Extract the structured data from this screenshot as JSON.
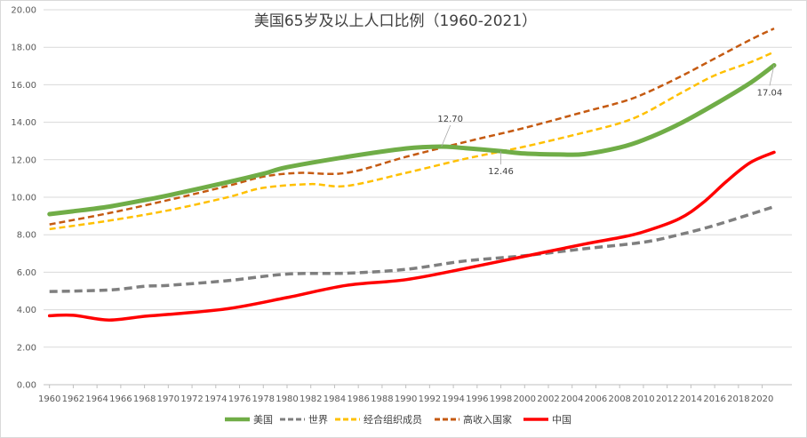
{
  "chart_data": {
    "type": "line",
    "title": "美国65岁及以上人口比例（1960-2021）",
    "xlabel": "",
    "ylabel": "",
    "ylim": [
      0,
      20
    ],
    "xlim": [
      1960,
      2021
    ],
    "grid": true,
    "legend_position": "bottom",
    "yticks": [
      "0.00",
      "2.00",
      "4.00",
      "6.00",
      "8.00",
      "10.00",
      "12.00",
      "14.00",
      "16.00",
      "18.00",
      "20.00"
    ],
    "xticks": [
      "1960",
      "1962",
      "1964",
      "1966",
      "1968",
      "1970",
      "1972",
      "1974",
      "1976",
      "1978",
      "1980",
      "1982",
      "1984",
      "1986",
      "1988",
      "1990",
      "1992",
      "1994",
      "1996",
      "1998",
      "2000",
      "2002",
      "2004",
      "2006",
      "2008",
      "2010",
      "2012",
      "2014",
      "2016",
      "2018",
      "2020"
    ],
    "series": [
      {
        "name": "美国",
        "color": "#70ad47",
        "style": "solid",
        "points": [
          [
            1960,
            9.1
          ],
          [
            1962,
            9.25
          ],
          [
            1965,
            9.5
          ],
          [
            1968,
            9.85
          ],
          [
            1970,
            10.1
          ],
          [
            1975,
            10.8
          ],
          [
            1978,
            11.25
          ],
          [
            1980,
            11.6
          ],
          [
            1985,
            12.15
          ],
          [
            1990,
            12.6
          ],
          [
            1993,
            12.7
          ],
          [
            1995,
            12.62
          ],
          [
            1998,
            12.46
          ],
          [
            2000,
            12.33
          ],
          [
            2003,
            12.28
          ],
          [
            2005,
            12.3
          ],
          [
            2008,
            12.65
          ],
          [
            2010,
            13.05
          ],
          [
            2013,
            13.9
          ],
          [
            2016,
            14.95
          ],
          [
            2019,
            16.1
          ],
          [
            2021,
            17.04
          ]
        ]
      },
      {
        "name": "世界",
        "color": "#7f7f7f",
        "style": "dashed",
        "points": [
          [
            1960,
            4.97
          ],
          [
            1965,
            5.05
          ],
          [
            1968,
            5.25
          ],
          [
            1970,
            5.3
          ],
          [
            1975,
            5.55
          ],
          [
            1980,
            5.9
          ],
          [
            1985,
            5.95
          ],
          [
            1990,
            6.15
          ],
          [
            1995,
            6.6
          ],
          [
            2000,
            6.88
          ],
          [
            2005,
            7.25
          ],
          [
            2010,
            7.6
          ],
          [
            2013,
            8.0
          ],
          [
            2016,
            8.5
          ],
          [
            2021,
            9.5
          ]
        ]
      },
      {
        "name": "经合组织成员",
        "color": "#ffc000",
        "style": "dashed",
        "points": [
          [
            1960,
            8.3
          ],
          [
            1965,
            8.75
          ],
          [
            1970,
            9.3
          ],
          [
            1975,
            10.0
          ],
          [
            1978,
            10.5
          ],
          [
            1982,
            10.7
          ],
          [
            1985,
            10.6
          ],
          [
            1990,
            11.3
          ],
          [
            1995,
            12.05
          ],
          [
            2000,
            12.7
          ],
          [
            2005,
            13.45
          ],
          [
            2008,
            13.95
          ],
          [
            2010,
            14.45
          ],
          [
            2013,
            15.5
          ],
          [
            2016,
            16.5
          ],
          [
            2019,
            17.2
          ],
          [
            2021,
            17.75
          ]
        ]
      },
      {
        "name": "高收入国家",
        "color": "#c55a11",
        "style": "dashed",
        "points": [
          [
            1960,
            8.55
          ],
          [
            1965,
            9.15
          ],
          [
            1970,
            9.85
          ],
          [
            1975,
            10.6
          ],
          [
            1978,
            11.1
          ],
          [
            1981,
            11.3
          ],
          [
            1985,
            11.3
          ],
          [
            1990,
            12.15
          ],
          [
            1995,
            12.95
          ],
          [
            2000,
            13.7
          ],
          [
            2005,
            14.55
          ],
          [
            2008,
            15.05
          ],
          [
            2010,
            15.5
          ],
          [
            2013,
            16.4
          ],
          [
            2016,
            17.4
          ],
          [
            2019,
            18.4
          ],
          [
            2021,
            19.0
          ]
        ]
      },
      {
        "name": "中国",
        "color": "#ff0000",
        "style": "solid",
        "points": [
          [
            1960,
            3.68
          ],
          [
            1962,
            3.7
          ],
          [
            1965,
            3.45
          ],
          [
            1968,
            3.65
          ],
          [
            1970,
            3.75
          ],
          [
            1975,
            4.05
          ],
          [
            1980,
            4.65
          ],
          [
            1985,
            5.3
          ],
          [
            1990,
            5.6
          ],
          [
            1995,
            6.2
          ],
          [
            2000,
            6.85
          ],
          [
            2005,
            7.5
          ],
          [
            2008,
            7.85
          ],
          [
            2010,
            8.15
          ],
          [
            2013,
            8.85
          ],
          [
            2015,
            9.7
          ],
          [
            2017,
            10.85
          ],
          [
            2019,
            11.85
          ],
          [
            2021,
            12.4
          ]
        ]
      }
    ],
    "annotations": [
      {
        "text": "12.70",
        "x": 1993,
        "y": 12.7,
        "series": "美国"
      },
      {
        "text": "12.46",
        "x": 1998,
        "y": 12.46,
        "series": "美国"
      },
      {
        "text": "17.04",
        "x": 2021,
        "y": 17.04,
        "series": "美国"
      }
    ]
  }
}
